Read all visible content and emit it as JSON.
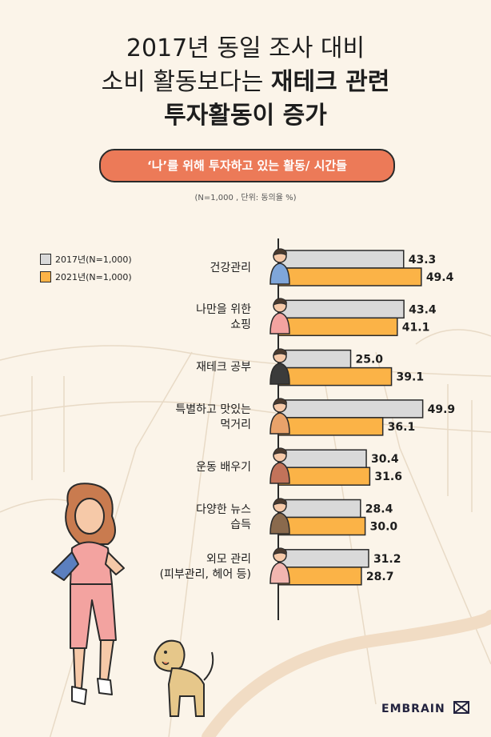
{
  "title": {
    "line1": "2017년 동일 조사 대비",
    "line2_normal": "소비 활동보다는 ",
    "line2_bold": "재테크 관련",
    "line3": "투자활동이 증가"
  },
  "subtitle": "‘나’를 위해 투자하고 있는 활동/ 시간들",
  "note": "(N=1,000 , 단위: 동의율 %)",
  "brand": "EMBRAIN",
  "colors": {
    "s2017": "#d9d9d9",
    "s2021": "#fbb347",
    "accent": "#ec7a58",
    "stroke": "#2a2a2a"
  },
  "chart_data": {
    "type": "bar",
    "orientation": "horizontal",
    "categories": [
      [
        "건강관리"
      ],
      [
        "나만을 위한",
        "쇼핑"
      ],
      [
        "재테크 공부"
      ],
      [
        "특별하고 맛있는",
        "먹거리"
      ],
      [
        "운동 배우기"
      ],
      [
        "다양한 뉴스",
        "습득"
      ],
      [
        "외모 관리",
        "(피부관리, 헤어 등)"
      ]
    ],
    "series": [
      {
        "name": "2017년(N=1,000)",
        "values": [
          43.3,
          43.4,
          25.0,
          49.9,
          30.4,
          28.4,
          31.2
        ],
        "labels": [
          "43.3",
          "43.4",
          "25.0",
          "49.9",
          "30.4",
          "28.4",
          "31.2"
        ]
      },
      {
        "name": "2021년(N=1,000)",
        "values": [
          49.4,
          41.1,
          39.1,
          36.1,
          31.6,
          30.0,
          28.7
        ],
        "labels": [
          "49.4",
          "41.1",
          "39.1",
          "36.1",
          "31.6",
          "30.0",
          "28.7"
        ]
      }
    ],
    "unit": "%",
    "xlim": [
      0,
      55
    ],
    "legend": "top-left"
  }
}
